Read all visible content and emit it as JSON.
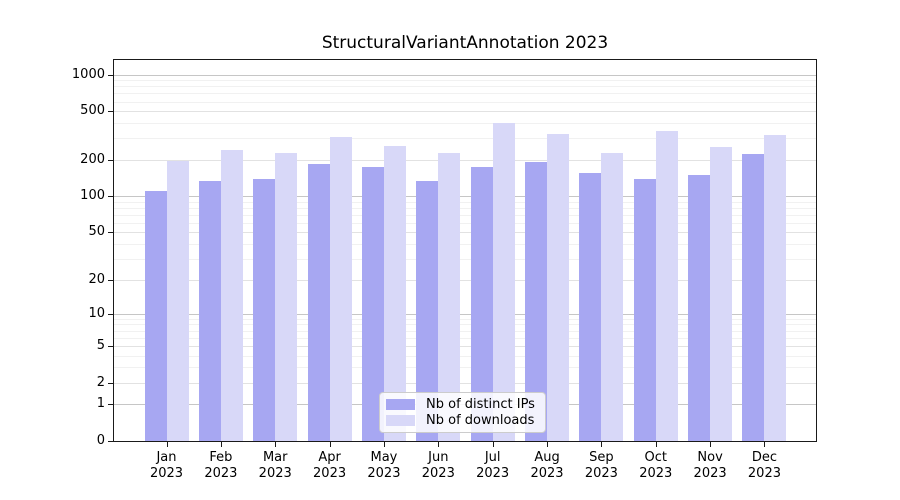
{
  "title": "StructuralVariantAnnotation 2023",
  "legend": {
    "items": [
      {
        "label": "Nb of distinct IPs"
      },
      {
        "label": "Nb of downloads"
      }
    ]
  },
  "chart_data": {
    "type": "bar",
    "title": "StructuralVariantAnnotation 2023",
    "categories": [
      "Jan 2023",
      "Feb 2023",
      "Mar 2023",
      "Apr 2023",
      "May 2023",
      "Jun 2023",
      "Jul 2023",
      "Aug 2023",
      "Sep 2023",
      "Oct 2023",
      "Nov 2023",
      "Dec 2023"
    ],
    "series": [
      {
        "name": "Nb of distinct IPs",
        "color": "#a7a7f2",
        "values": [
          111,
          134,
          139,
          184,
          174,
          134,
          173,
          190,
          154,
          139,
          150,
          222
        ]
      },
      {
        "name": "Nb of downloads",
        "color": "#d8d8f8",
        "values": [
          195,
          240,
          226,
          305,
          261,
          225,
          400,
          326,
          229,
          347,
          256,
          318
        ]
      }
    ],
    "xlabel": "",
    "ylabel": "",
    "yscale": "log1p",
    "ylim": [
      0,
      1316
    ],
    "yticks": [
      0,
      1,
      2,
      5,
      10,
      20,
      50,
      100,
      200,
      500,
      1000
    ],
    "minor_yticks": [
      3,
      4,
      6,
      7,
      8,
      9,
      30,
      40,
      60,
      70,
      80,
      90,
      300,
      400,
      600,
      700,
      800,
      900
    ],
    "grid": true,
    "legend_position": "lower center"
  },
  "colors": {
    "bar_ips": "#a7a7f2",
    "bar_downloads": "#d8d8f8",
    "grid_major_pow10": "#c6c6c6",
    "grid_major": "#e2e2e2",
    "grid_minor": "#f1f1f1",
    "spine": "#1a1a1a",
    "text": "#000000",
    "legend_border": "#cccccc"
  }
}
